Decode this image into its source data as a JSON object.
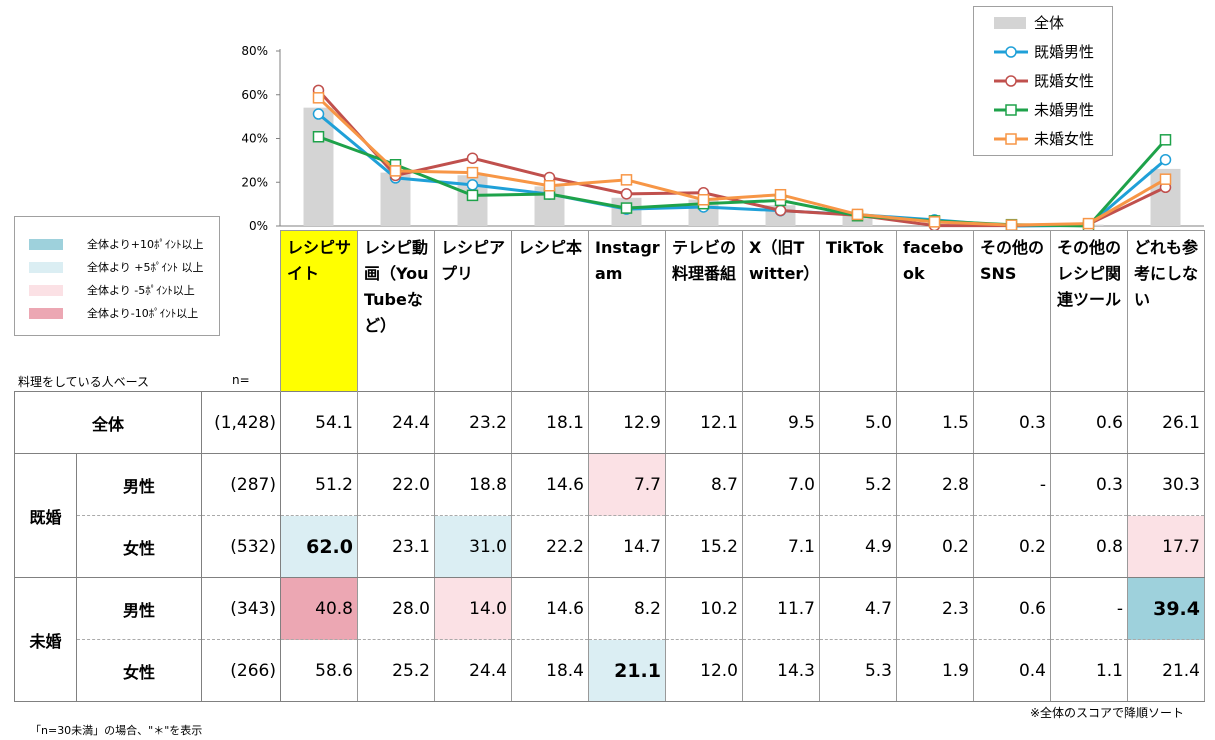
{
  "chart_data": {
    "type": "bar",
    "categories": [
      "レシピサイト",
      "レシピ動画（YouTubeなど）",
      "レシピアプリ",
      "レシピ本",
      "Instagram",
      "テレビの料理番組",
      "X（旧Twitter）",
      "TikTok",
      "facebook",
      "その他のSNS",
      "その他のレシピ関連ツール",
      "どれも参考にしない"
    ],
    "header_labels": [
      "レシピサイト",
      "レシピ動画（YouTubeなど）",
      "レシピアプリ",
      "レシピ本",
      "Instagram",
      "テレビの料理番組",
      "X（旧Twitter）",
      "TikTok",
      "facebook",
      "その他のSNS",
      "その他のレシピ関連ツール",
      "どれも参考にしない"
    ],
    "y_ticks": [
      "80%",
      "60%",
      "40%",
      "20%",
      "0%"
    ],
    "ylim": [
      0,
      80
    ],
    "series": [
      {
        "name": "全体",
        "kind": "bar",
        "color": "#d4d4d4",
        "values": [
          54.1,
          24.4,
          23.2,
          18.1,
          12.9,
          12.1,
          9.5,
          5.0,
          1.5,
          0.3,
          0.6,
          26.1
        ]
      },
      {
        "name": "既婚男性",
        "kind": "line",
        "marker": "circle",
        "color": "#1fa0d8",
        "values": [
          51.2,
          22.0,
          18.8,
          14.6,
          7.7,
          8.7,
          7.0,
          5.2,
          2.8,
          0,
          0.3,
          30.3
        ]
      },
      {
        "name": "既婚女性",
        "kind": "line",
        "marker": "circle",
        "color": "#c0504d",
        "values": [
          62.0,
          23.1,
          31.0,
          22.2,
          14.7,
          15.2,
          7.1,
          4.9,
          0.2,
          0.2,
          0.8,
          17.7
        ]
      },
      {
        "name": "未婚男性",
        "kind": "line",
        "marker": "square",
        "color": "#1ea24a",
        "values": [
          40.8,
          28.0,
          14.0,
          14.6,
          8.2,
          10.2,
          11.7,
          4.7,
          2.3,
          0.6,
          0,
          39.4
        ]
      },
      {
        "name": "未婚女性",
        "kind": "line",
        "marker": "square",
        "color": "#f79646",
        "values": [
          58.6,
          25.2,
          24.4,
          18.4,
          21.1,
          12.0,
          14.3,
          5.3,
          1.9,
          0.4,
          1.1,
          21.4
        ]
      }
    ]
  },
  "legend": [
    {
      "label": "全体",
      "color": "#d4d4d4",
      "marker": "bar"
    },
    {
      "label": "既婚男性",
      "color": "#1fa0d8",
      "marker": "circle"
    },
    {
      "label": "既婚女性",
      "color": "#c0504d",
      "marker": "circle"
    },
    {
      "label": "未婚男性",
      "color": "#1ea24a",
      "marker": "square"
    },
    {
      "label": "未婚女性",
      "color": "#f79646",
      "marker": "square"
    }
  ],
  "key": [
    {
      "label": "全体より+10ﾎﾟｲﾝﾄ以上",
      "color": "#9ed1dc"
    },
    {
      "label": "全体より +5ﾎﾟｲﾝﾄ 以上",
      "color": "#dbeef3"
    },
    {
      "label": "全体より -5ﾎﾟｲﾝﾄ以上",
      "color": "#fbe1e5"
    },
    {
      "label": "全体より-10ﾎﾟｲﾝﾄ以上",
      "color": "#eca7b3"
    }
  ],
  "base_label": "料理をしている人ベース",
  "n_label": "n=",
  "rows": [
    {
      "group": "",
      "sub": "全体",
      "n": "(1,428)",
      "values": [
        "54.1",
        "24.4",
        "23.2",
        "18.1",
        "12.9",
        "12.1",
        "9.5",
        "5.0",
        "1.5",
        "0.3",
        "0.6",
        "26.1"
      ],
      "styles": [
        "",
        "",
        "",
        "",
        "",
        "",
        "",
        "",
        "",
        "",
        "",
        ""
      ]
    },
    {
      "group": "既婚",
      "sub": "男性",
      "n": "(287)",
      "values": [
        "51.2",
        "22.0",
        "18.8",
        "14.6",
        "7.7",
        "8.7",
        "7.0",
        "5.2",
        "2.8",
        "-",
        "0.3",
        "30.3"
      ],
      "styles": [
        "",
        "",
        "",
        "",
        "d5",
        "",
        "",
        "",
        "",
        "",
        "",
        ""
      ]
    },
    {
      "group": "既婚",
      "sub": "女性",
      "n": "(532)",
      "values": [
        "62.0",
        "23.1",
        "31.0",
        "22.2",
        "14.7",
        "15.2",
        "7.1",
        "4.9",
        "0.2",
        "0.2",
        "0.8",
        "17.7"
      ],
      "styles": [
        "u5b",
        "",
        "u5",
        "",
        "",
        "",
        "",
        "",
        "",
        "",
        "",
        "d5"
      ]
    },
    {
      "group": "未婚",
      "sub": "男性",
      "n": "(343)",
      "values": [
        "40.8",
        "28.0",
        "14.0",
        "14.6",
        "8.2",
        "10.2",
        "11.7",
        "4.7",
        "2.3",
        "0.6",
        "-",
        "39.4"
      ],
      "styles": [
        "d10",
        "",
        "d5",
        "",
        "",
        "",
        "",
        "",
        "",
        "",
        "",
        "u10b"
      ]
    },
    {
      "group": "未婚",
      "sub": "女性",
      "n": "(266)",
      "values": [
        "58.6",
        "25.2",
        "24.4",
        "18.4",
        "21.1",
        "12.0",
        "14.3",
        "5.3",
        "1.9",
        "0.4",
        "1.1",
        "21.4"
      ],
      "styles": [
        "",
        "",
        "",
        "",
        "u5b",
        "",
        "",
        "",
        "",
        "",
        "",
        ""
      ]
    }
  ],
  "groups": [
    "既婚",
    "未婚"
  ],
  "footnote_left": "「n=30未満」の場合、\"＊\"を表示",
  "footnote_right": "※全体のスコアで降順ソート"
}
